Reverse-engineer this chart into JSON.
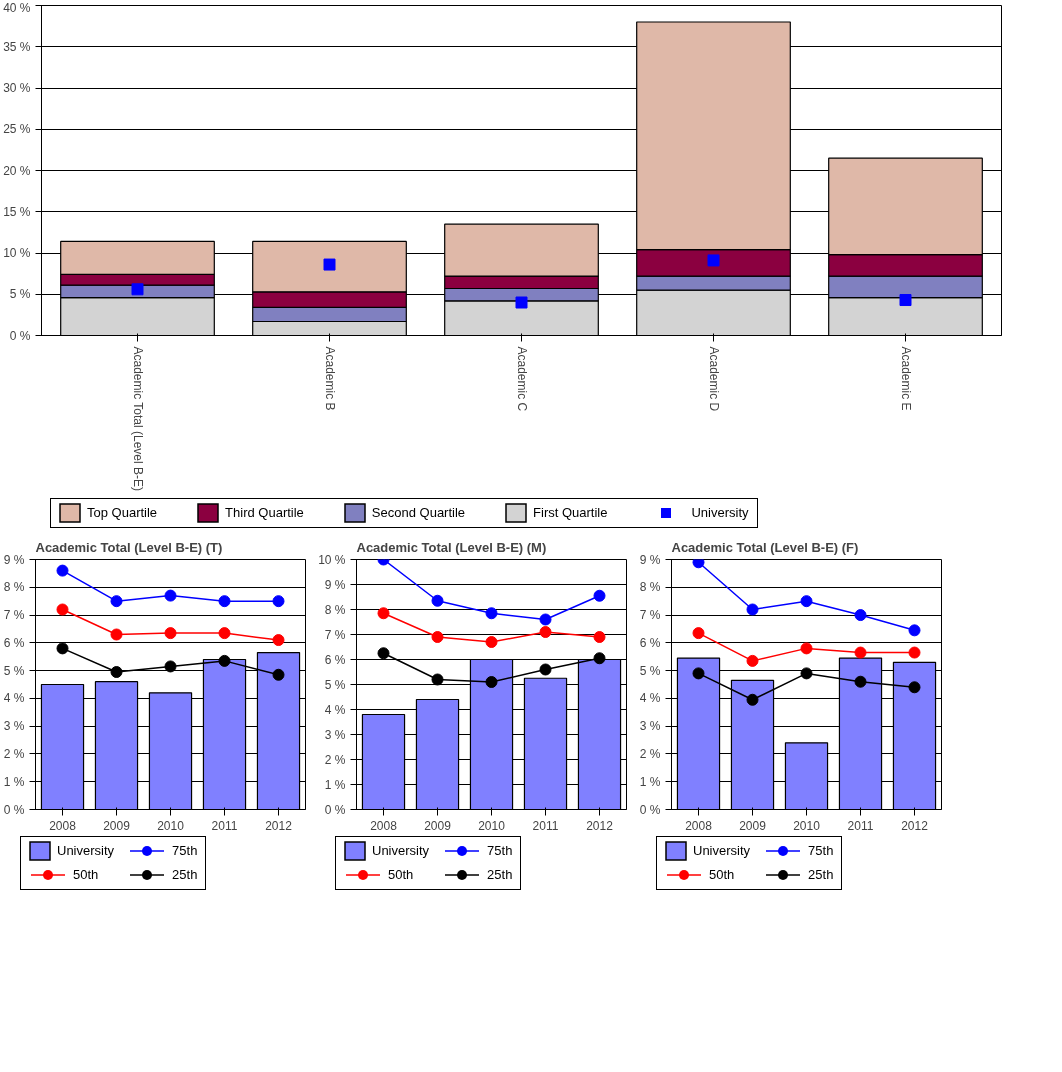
{
  "chart_data": [
    {
      "type": "bar",
      "stacked": true,
      "categories": [
        "Academic Total (Level B-E)",
        "Academic B",
        "Academic C",
        "Academic D",
        "Academic E"
      ],
      "series": [
        {
          "name": "First Quartile",
          "color": "#d3d3d3",
          "values": [
            4.6,
            1.7,
            4.2,
            5.5,
            4.6
          ]
        },
        {
          "name": "Second Quartile",
          "color": "#8080c0",
          "values": [
            1.5,
            1.7,
            1.5,
            1.7,
            2.6
          ]
        },
        {
          "name": "Third Quartile",
          "color": "#8b0040",
          "values": [
            1.3,
            1.9,
            1.5,
            3.2,
            2.6
          ]
        },
        {
          "name": "Top Quartile",
          "color": "#dfb8a8",
          "values": [
            4.0,
            6.1,
            6.3,
            27.6,
            11.7
          ]
        },
        {
          "name": "University",
          "type": "scatter",
          "color": "#0000ff",
          "marker": "square",
          "values": [
            5.6,
            8.6,
            4.0,
            9.1,
            4.3
          ]
        }
      ],
      "ylim": [
        0,
        40
      ],
      "yticks": [
        {
          "value": 0,
          "label": "0 %"
        },
        {
          "value": 5,
          "label": "5 %"
        },
        {
          "value": 10,
          "label": "10 %"
        },
        {
          "value": 15,
          "label": "15 %"
        },
        {
          "value": 20,
          "label": "20 %"
        },
        {
          "value": 25,
          "label": "25 %"
        },
        {
          "value": 30,
          "label": "30 %"
        },
        {
          "value": 35,
          "label": "35 %"
        },
        {
          "value": 40,
          "label": "40 %"
        }
      ],
      "grid": "y",
      "legend": "bottom"
    },
    {
      "type": "bar",
      "title": "Academic Total (Level B-E) (T)",
      "categories": [
        "2008",
        "2009",
        "2010",
        "2011",
        "2012"
      ],
      "series": [
        {
          "name": "University",
          "color": "#8080ff",
          "values": [
            4.5,
            4.6,
            4.2,
            5.4,
            5.65
          ]
        },
        {
          "name": "75th",
          "type": "line",
          "color": "#0000ff",
          "values": [
            8.6,
            7.5,
            7.7,
            7.5,
            7.5
          ]
        },
        {
          "name": "50th",
          "type": "line",
          "color": "#ff0000",
          "values": [
            7.2,
            6.3,
            6.35,
            6.35,
            6.1
          ]
        },
        {
          "name": "25th",
          "type": "line",
          "color": "#000000",
          "values": [
            5.8,
            4.95,
            5.15,
            5.35,
            4.85
          ]
        }
      ],
      "ylim": [
        0,
        9
      ],
      "yticks": [
        {
          "value": 0,
          "label": "0 %"
        },
        {
          "value": 1,
          "label": "1 %"
        },
        {
          "value": 2,
          "label": "2 %"
        },
        {
          "value": 3,
          "label": "3 %"
        },
        {
          "value": 4,
          "label": "4 %"
        },
        {
          "value": 5,
          "label": "5 %"
        },
        {
          "value": 6,
          "label": "6 %"
        },
        {
          "value": 7,
          "label": "7 %"
        },
        {
          "value": 8,
          "label": "8 %"
        },
        {
          "value": 9,
          "label": "9 %"
        }
      ],
      "grid": "y",
      "legend": "bottom",
      "marker": "circle"
    },
    {
      "type": "bar",
      "title": "Academic Total (Level B-E) (M)",
      "categories": [
        "2008",
        "2009",
        "2010",
        "2011",
        "2012"
      ],
      "series": [
        {
          "name": "University",
          "color": "#8080ff",
          "values": [
            3.8,
            4.4,
            6.0,
            5.25,
            6.0
          ]
        },
        {
          "name": "75th",
          "type": "line",
          "color": "#0000ff",
          "values": [
            10.0,
            8.35,
            7.85,
            7.6,
            8.55
          ]
        },
        {
          "name": "50th",
          "type": "line",
          "color": "#ff0000",
          "values": [
            7.85,
            6.9,
            6.7,
            7.1,
            6.9
          ]
        },
        {
          "name": "25th",
          "type": "line",
          "color": "#000000",
          "values": [
            6.25,
            5.2,
            5.1,
            5.6,
            6.05
          ]
        }
      ],
      "ylim": [
        0,
        10
      ],
      "yticks": [
        {
          "value": 0,
          "label": "0 %"
        },
        {
          "value": 1,
          "label": "1 %"
        },
        {
          "value": 2,
          "label": "2 %"
        },
        {
          "value": 3,
          "label": "3 %"
        },
        {
          "value": 4,
          "label": "4 %"
        },
        {
          "value": 5,
          "label": "5 %"
        },
        {
          "value": 6,
          "label": "6 %"
        },
        {
          "value": 7,
          "label": "7 %"
        },
        {
          "value": 8,
          "label": "8 %"
        },
        {
          "value": 9,
          "label": "9 %"
        },
        {
          "value": 10,
          "label": "10 %"
        }
      ],
      "grid": "y",
      "legend": "bottom",
      "marker": "circle"
    },
    {
      "type": "bar",
      "title": "Academic Total (Level B-E) (F)",
      "categories": [
        "2008",
        "2009",
        "2010",
        "2011",
        "2012"
      ],
      "series": [
        {
          "name": "University",
          "color": "#8080ff",
          "values": [
            5.45,
            4.65,
            2.4,
            5.45,
            5.3
          ]
        },
        {
          "name": "75th",
          "type": "line",
          "color": "#0000ff",
          "values": [
            8.9,
            7.2,
            7.5,
            7.0,
            6.45
          ]
        },
        {
          "name": "50th",
          "type": "line",
          "color": "#ff0000",
          "values": [
            6.35,
            5.35,
            5.8,
            5.65,
            5.65
          ]
        },
        {
          "name": "25th",
          "type": "line",
          "color": "#000000",
          "values": [
            4.9,
            3.95,
            4.9,
            4.6,
            4.4
          ]
        }
      ],
      "ylim": [
        0,
        9
      ],
      "yticks": [
        {
          "value": 0,
          "label": "0 %"
        },
        {
          "value": 1,
          "label": "1 %"
        },
        {
          "value": 2,
          "label": "2 %"
        },
        {
          "value": 3,
          "label": "3 %"
        },
        {
          "value": 4,
          "label": "4 %"
        },
        {
          "value": 5,
          "label": "5 %"
        },
        {
          "value": 6,
          "label": "6 %"
        },
        {
          "value": 7,
          "label": "7 %"
        },
        {
          "value": 8,
          "label": "8 %"
        },
        {
          "value": 9,
          "label": "9 %"
        }
      ],
      "grid": "y",
      "legend": "bottom",
      "marker": "circle"
    }
  ]
}
